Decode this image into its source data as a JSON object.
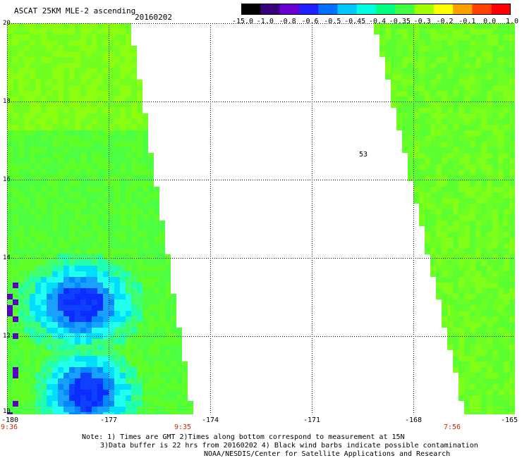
{
  "header": {
    "title": "ASCAT 25KM MLE-2 ascending",
    "date": "20160202"
  },
  "colorbar": {
    "labels": [
      "-15.0",
      "-1.0",
      "-0.8",
      "-0.6",
      "-0.5",
      "-0.45",
      "-0.4",
      "-0.35",
      "-0.3",
      "-0.2",
      "-0.1",
      "0.0",
      "1.0"
    ],
    "colors": [
      "#000000",
      "#3a007a",
      "#6a00d0",
      "#2020ff",
      "#0070ff",
      "#00c8ff",
      "#00ffe0",
      "#00ff80",
      "#40ff40",
      "#a0ff00",
      "#ffff00",
      "#ffa000",
      "#ff4000",
      "#ff0000"
    ]
  },
  "axes": {
    "lat_labels": [
      "20",
      "18",
      "16",
      "14",
      "12",
      "10"
    ],
    "lon_labels": [
      "-180",
      "-177",
      "-174",
      "-171",
      "-168",
      "-165"
    ]
  },
  "swath_times": [
    "9:36",
    "9:35",
    "7:56"
  ],
  "map_marker": "53",
  "footer": {
    "line1": "Note: 1) Times are GMT 2)Times along bottom correspond to measurement at 15N",
    "line2": "3)Data buffer is 22 hrs from 20160202 4) Black wind barbs indicate possible contamination",
    "line3": "NOAA/NESDIS/Center for Satellite Applications and Research"
  }
}
